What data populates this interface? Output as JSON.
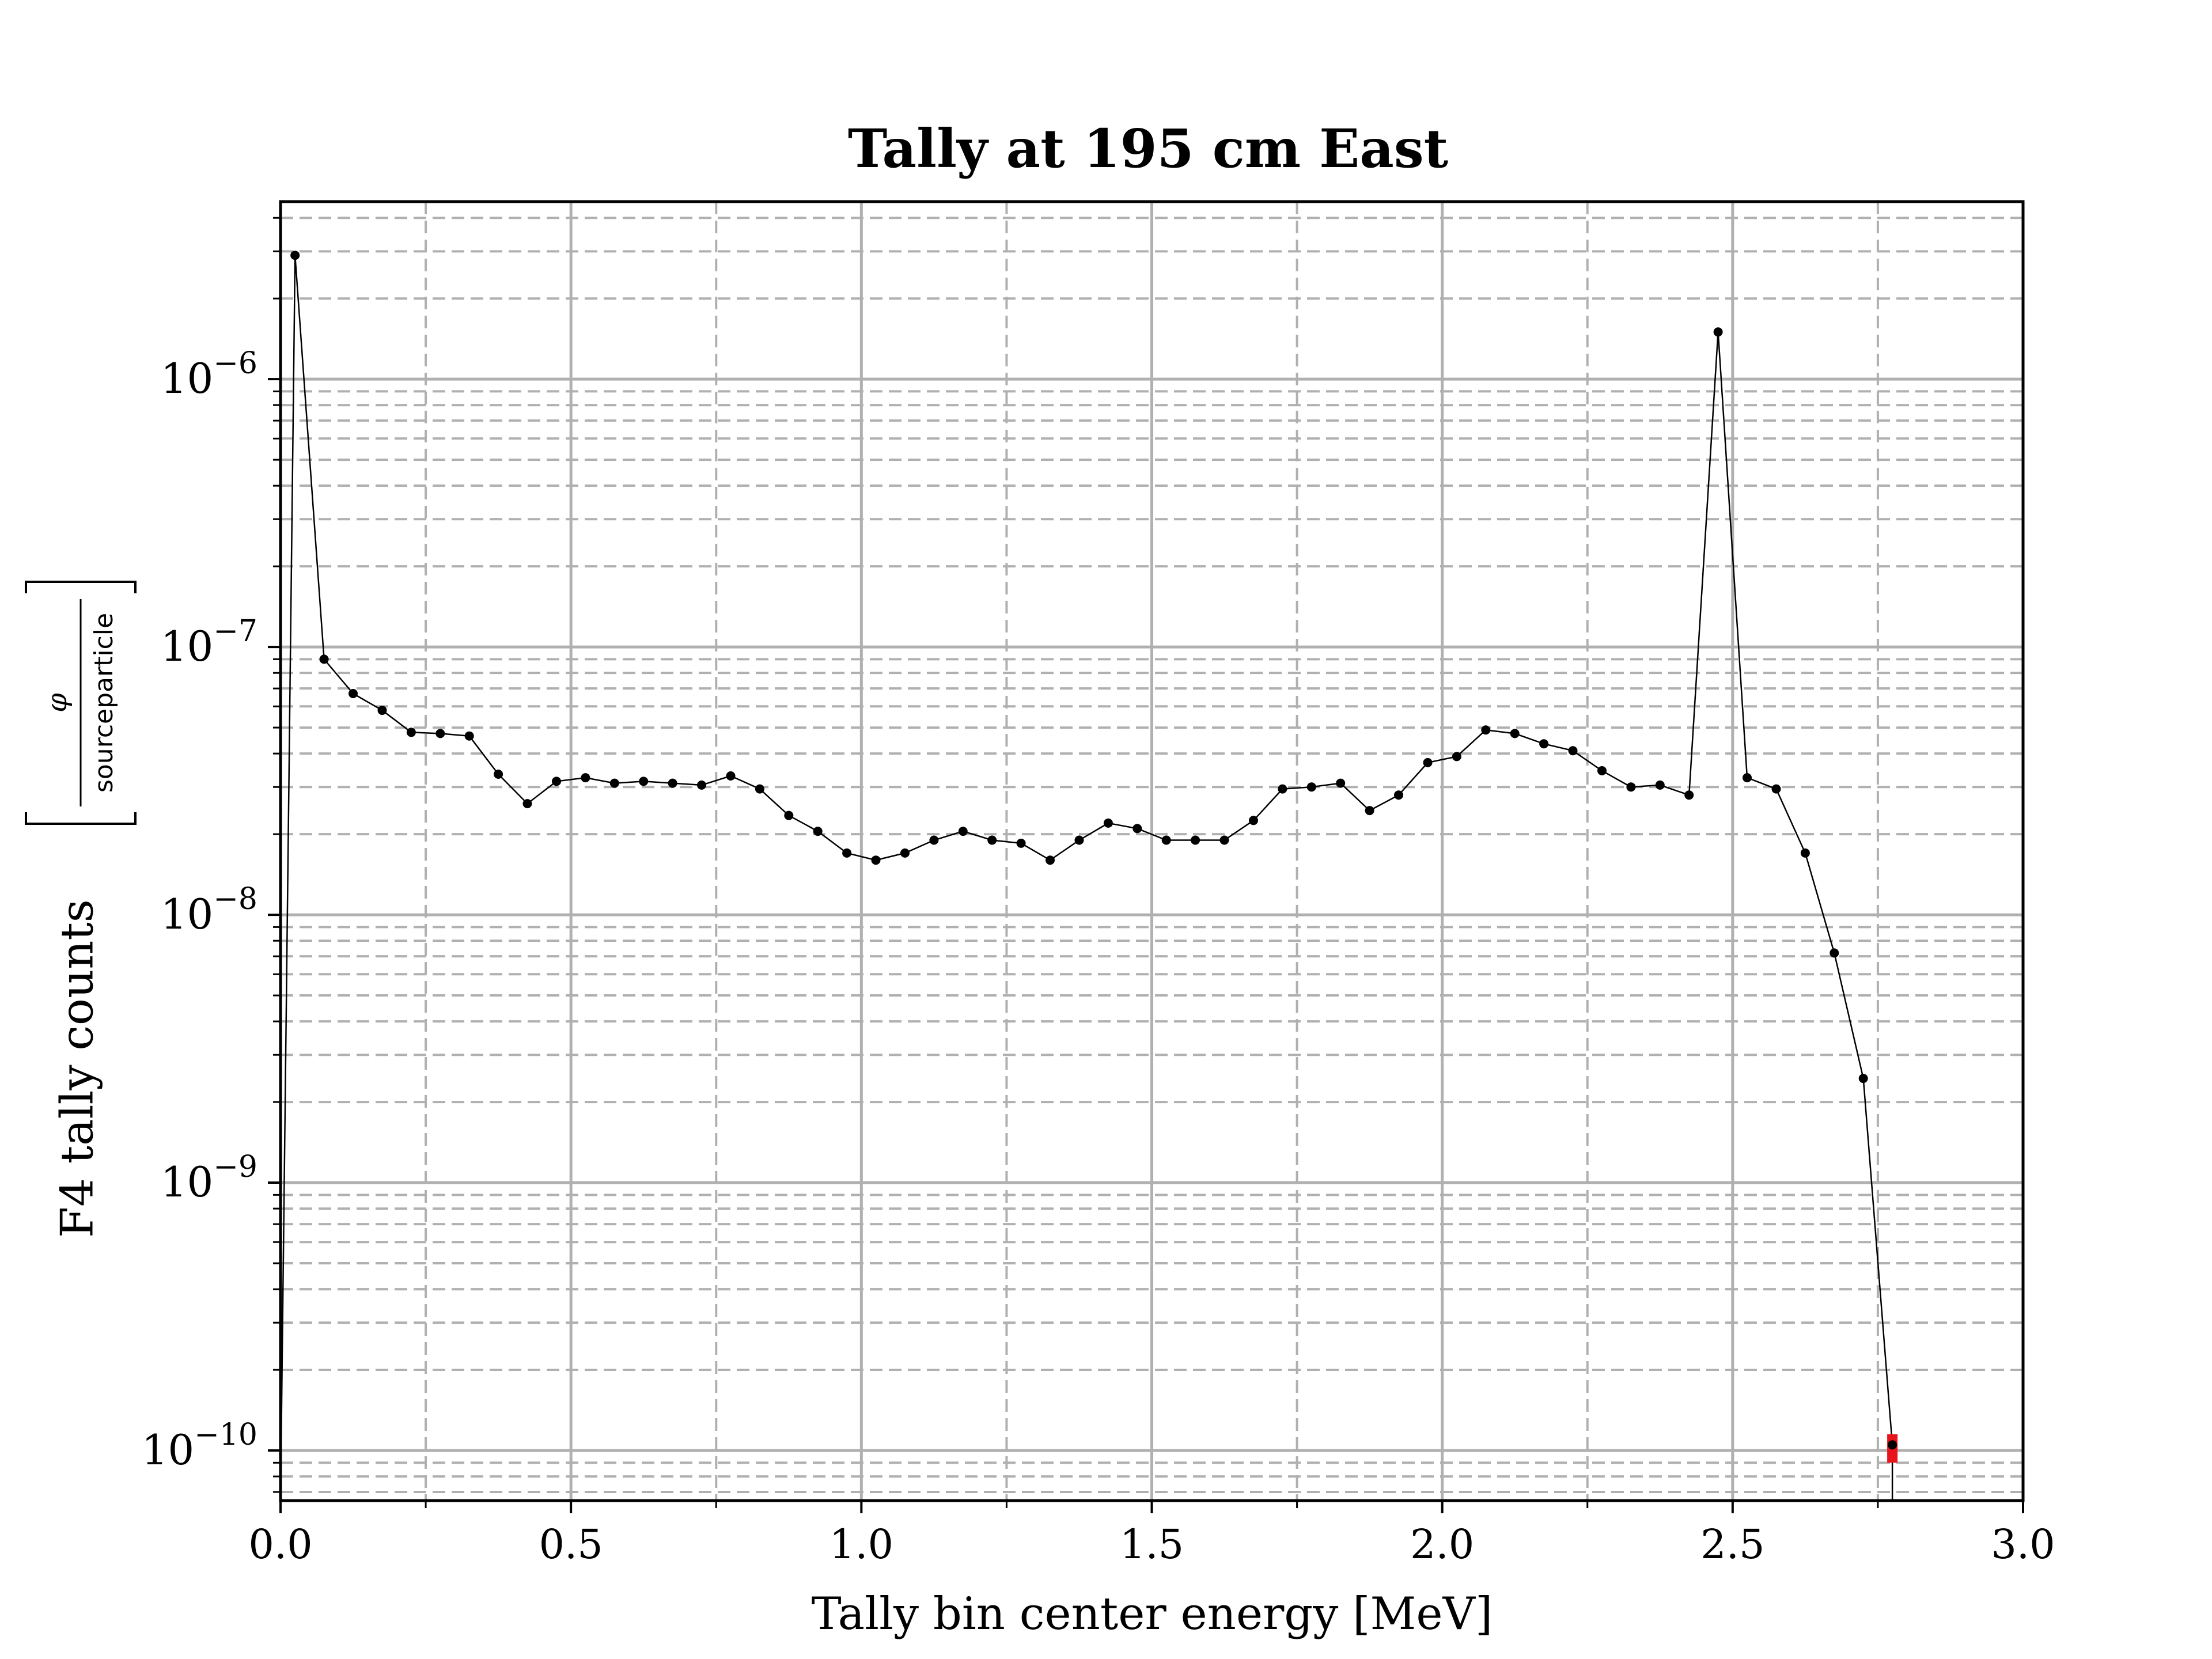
{
  "chart_data": {
    "type": "line",
    "title": "Tally at 195 cm East",
    "xlabel": "Tally bin center energy [MeV]",
    "ylabel": {
      "prefix": "F4 tally counts",
      "numerator": "φ",
      "denominator": "sourceparticle"
    },
    "xlim": [
      0.0,
      3.0
    ],
    "ylim": [
      6.5e-11,
      4.6e-06
    ],
    "yscale": "log",
    "x_ticks": [
      "0.0",
      "0.5",
      "1.0",
      "1.5",
      "2.0",
      "2.5",
      "3.0"
    ],
    "y_ticks": [
      {
        "base": "10",
        "exp": "−10",
        "value": 1e-10
      },
      {
        "base": "10",
        "exp": "−9",
        "value": 1e-09
      },
      {
        "base": "10",
        "exp": "−8",
        "value": 1e-08
      },
      {
        "base": "10",
        "exp": "−7",
        "value": 1e-07
      },
      {
        "base": "10",
        "exp": "−6",
        "value": 1e-06
      }
    ],
    "grid": true,
    "x": [
      0.025,
      0.075,
      0.125,
      0.175,
      0.225,
      0.275,
      0.325,
      0.375,
      0.425,
      0.475,
      0.525,
      0.575,
      0.625,
      0.675,
      0.725,
      0.775,
      0.825,
      0.875,
      0.925,
      0.975,
      1.025,
      1.075,
      1.125,
      1.175,
      1.225,
      1.275,
      1.325,
      1.375,
      1.425,
      1.475,
      1.525,
      1.575,
      1.625,
      1.675,
      1.725,
      1.775,
      1.825,
      1.875,
      1.925,
      1.975,
      2.025,
      2.075,
      2.125,
      2.175,
      2.225,
      2.275,
      2.325,
      2.375,
      2.425,
      2.475,
      2.525,
      2.575,
      2.625,
      2.675,
      2.725,
      2.775
    ],
    "y": [
      2.9e-06,
      9e-08,
      6.7e-08,
      5.8e-08,
      4.8e-08,
      4.75e-08,
      4.65e-08,
      3.35e-08,
      2.6e-08,
      3.15e-08,
      3.25e-08,
      3.1e-08,
      3.15e-08,
      3.1e-08,
      3.05e-08,
      3.3e-08,
      2.95e-08,
      2.35e-08,
      2.05e-08,
      1.7e-08,
      1.6e-08,
      1.7e-08,
      1.9e-08,
      2.05e-08,
      1.9e-08,
      1.85e-08,
      1.6e-08,
      1.9e-08,
      2.2e-08,
      2.1e-08,
      1.9e-08,
      1.9e-08,
      1.9e-08,
      2.25e-08,
      2.95e-08,
      3e-08,
      3.1e-08,
      2.45e-08,
      2.8e-08,
      3.7e-08,
      3.9e-08,
      4.9e-08,
      4.75e-08,
      4.35e-08,
      4.1e-08,
      3.45e-08,
      3e-08,
      3.05e-08,
      2.8e-08,
      1.5e-06,
      3.25e-08,
      2.95e-08,
      1.7e-08,
      7.2e-09,
      2.45e-09,
      1.05e-10
    ],
    "error_bars": [
      {
        "x": 2.775,
        "y_low": 9e-11,
        "y_high": 1.15e-10
      }
    ],
    "colors": {
      "series": "#000000",
      "error": "#e8141b",
      "grid": "#b0b0b0"
    }
  }
}
